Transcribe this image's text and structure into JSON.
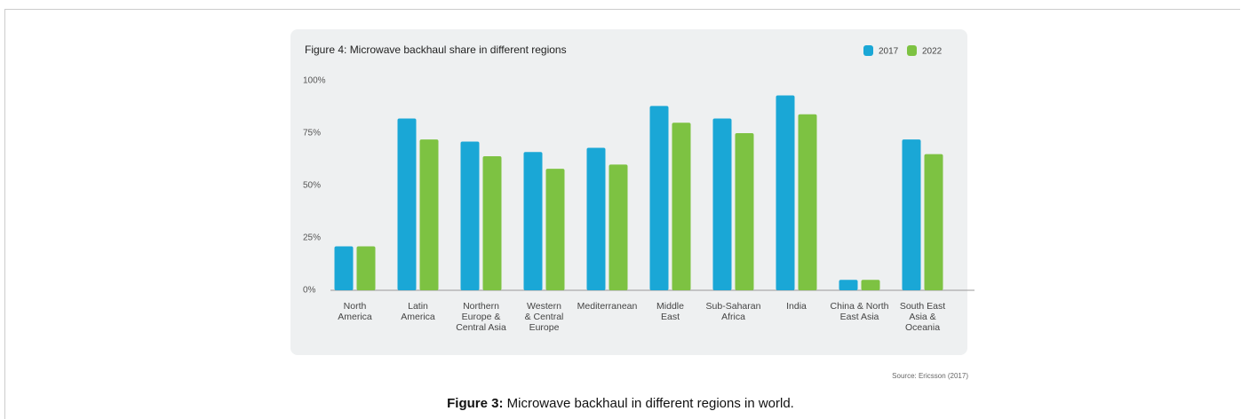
{
  "chart_data": {
    "type": "bar",
    "title": "Figure 4: Microwave backhaul share in different regions",
    "categories": [
      "North\nAmerica",
      "Latin\nAmerica",
      "Northern\nEurope &\nCentral Asia",
      "Western\n& Central\nEurope",
      "Mediterranean",
      "Middle\nEast",
      "Sub-Saharan\nAfrica",
      "India",
      "China & North\nEast Asia",
      "South East\nAsia &\nOceania"
    ],
    "series": [
      {
        "name": "2017",
        "color": "#1aa7d6",
        "values": [
          21,
          82,
          71,
          66,
          68,
          88,
          82,
          93,
          5,
          72
        ]
      },
      {
        "name": "2022",
        "color": "#7dc242",
        "values": [
          21,
          72,
          64,
          58,
          60,
          80,
          75,
          84,
          5,
          65
        ]
      }
    ],
    "ylim": [
      0,
      100
    ],
    "yticks": [
      {
        "value": 0,
        "label": "0%"
      },
      {
        "value": 25,
        "label": "25%"
      },
      {
        "value": 50,
        "label": "50%"
      },
      {
        "value": 75,
        "label": "75%"
      },
      {
        "value": 100,
        "label": "100%"
      }
    ],
    "legend": "top-right"
  },
  "source": "Source: Ericsson (2017)",
  "caption": {
    "label": "Figure 3:",
    "text": " Microwave backhaul in different regions in world."
  }
}
